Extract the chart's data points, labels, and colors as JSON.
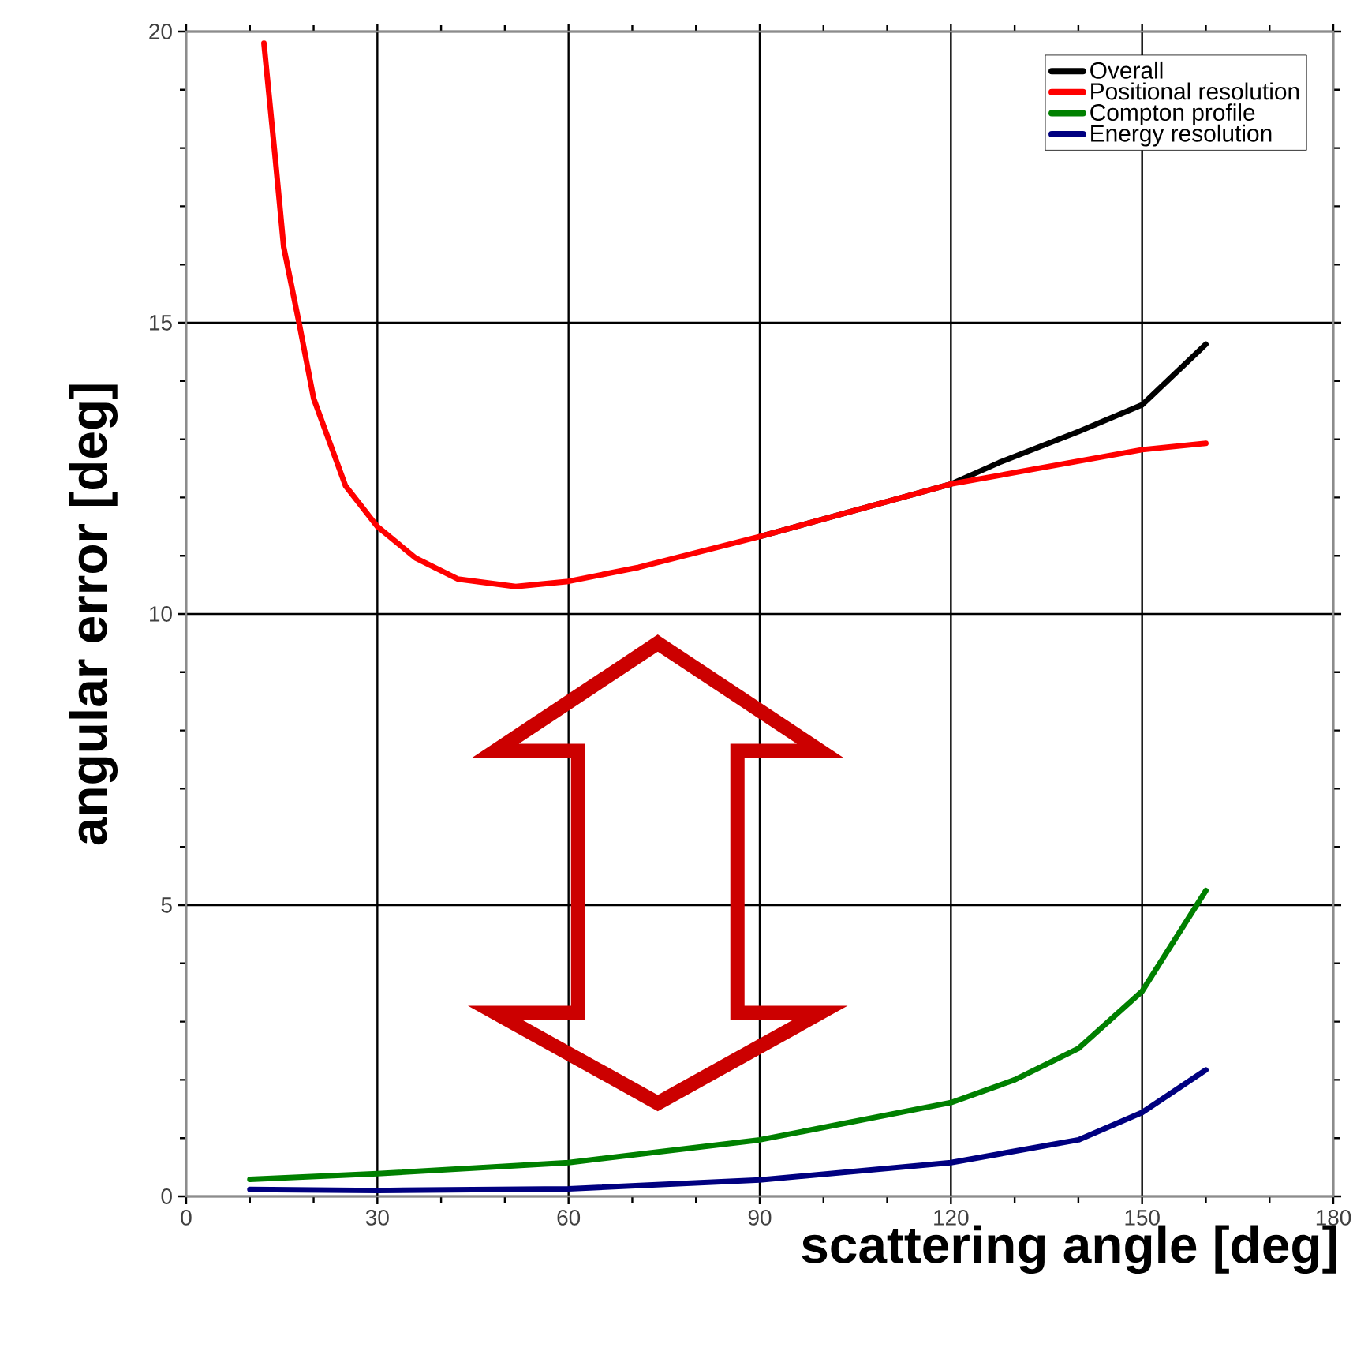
{
  "chart_data": {
    "type": "line",
    "xlabel": "scattering angle [deg]",
    "ylabel": "angular error [deg]",
    "xlim": [
      0,
      180
    ],
    "xticks": [
      0,
      30,
      60,
      90,
      120,
      150,
      180
    ],
    "ylim": [
      0,
      20
    ],
    "yticks": [
      0,
      5,
      10,
      15,
      20
    ],
    "grid": true,
    "legend": "top right",
    "marker": "none",
    "line_style": "solid",
    "series": [
      {
        "name": "Overall",
        "color": "#000000",
        "x": [
          90,
          120,
          127.6,
          140,
          150,
          160
        ],
        "values": [
          11.33,
          12.23,
          12.6,
          13.13,
          13.59,
          14.63
        ]
      },
      {
        "name": "Positional resolution",
        "color": "#ff0000",
        "x": [
          12.2,
          14,
          15.3,
          17.8,
          20,
          25,
          30,
          36,
          42.6,
          51.7,
          60,
          71,
          90,
          120,
          150,
          160
        ],
        "values": [
          19.8,
          17.8,
          16.3,
          14.95,
          13.7,
          12.2,
          11.5,
          10.96,
          10.6,
          10.47,
          10.56,
          10.8,
          11.33,
          12.23,
          12.82,
          12.93
        ]
      },
      {
        "name": "Compton profile",
        "color": "#008000",
        "x": [
          10,
          30,
          60,
          90,
          120,
          130,
          140,
          150,
          160
        ],
        "values": [
          0.29,
          0.39,
          0.58,
          0.97,
          1.61,
          2.0,
          2.54,
          3.52,
          5.25
        ]
      },
      {
        "name": "Energy resolution",
        "color": "#000080",
        "x": [
          10,
          30,
          60,
          90,
          120,
          140,
          150,
          160
        ],
        "values": [
          0.12,
          0.1,
          0.13,
          0.28,
          0.58,
          0.97,
          1.44,
          2.17
        ]
      }
    ]
  }
}
